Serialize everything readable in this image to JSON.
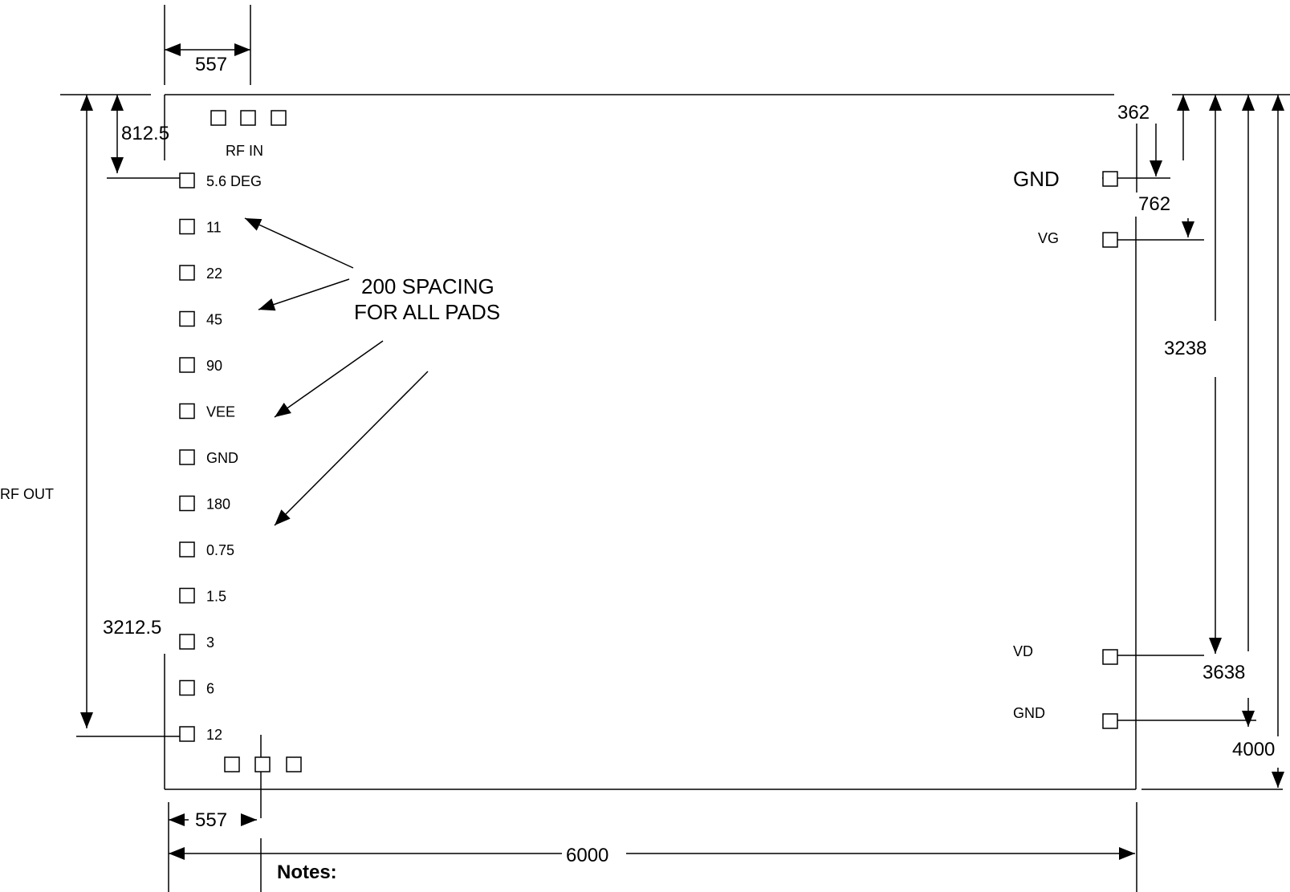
{
  "pad_labels": {
    "left": [
      "5.6 DEG",
      "11",
      "22",
      "45",
      "90",
      "VEE",
      "GND",
      "180",
      "0.75",
      "1.5",
      "3",
      "6",
      "12"
    ],
    "rf_in": "RF IN",
    "rf_out": "RF OUT",
    "right_gnd_top": "GND",
    "vg": "VG",
    "vd": "VD",
    "right_gnd_bottom": "GND"
  },
  "dimensions": {
    "top_557": "557",
    "left_812_5": "812.5",
    "left_3212_5": "3212.5",
    "right_362": "362",
    "right_762": "762",
    "right_3238": "3238",
    "right_3638": "3638",
    "right_4000": "4000",
    "bottom_557": "557",
    "bottom_6000": "6000"
  },
  "annotation": {
    "line1": "200 SPACING",
    "line2": "FOR ALL PADS"
  },
  "notes_title": "Notes:"
}
